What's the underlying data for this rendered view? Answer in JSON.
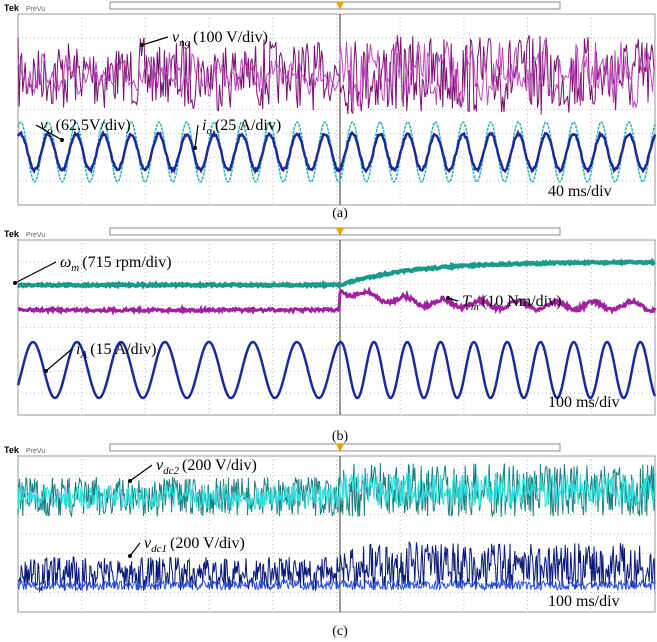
{
  "panels": [
    {
      "brand": "Tek",
      "mode": "PreVu",
      "caption": "(a)",
      "timebase": "40 ms/div",
      "traces": [
        {
          "symbol": "v",
          "sub": "ng",
          "scale": "(100 V/div)"
        },
        {
          "symbol": "v",
          "sub": "o",
          "scale": "(62.5V/div)"
        },
        {
          "symbol": "i",
          "sub": "o",
          "scale": "(25 A/div)"
        }
      ]
    },
    {
      "brand": "Tek",
      "mode": "PreVu",
      "caption": "(b)",
      "timebase": "100 ms/div",
      "traces": [
        {
          "symbol": "ω",
          "sub": "m",
          "scale": "(715 rpm/div)"
        },
        {
          "symbol": "T",
          "sub": "m",
          "scale": "(10 Nm/div)"
        },
        {
          "symbol": "i",
          "sub": "A",
          "scale": "(15 A/div)"
        }
      ]
    },
    {
      "brand": "Tek",
      "mode": "PreVu",
      "caption": "(c)",
      "timebase": "100 ms/div",
      "traces": [
        {
          "symbol": "v",
          "sub": "dc2",
          "scale": "(200 V/div)"
        },
        {
          "symbol": "v",
          "sub": "dc1",
          "scale": "(200 V/div)"
        }
      ]
    }
  ]
}
